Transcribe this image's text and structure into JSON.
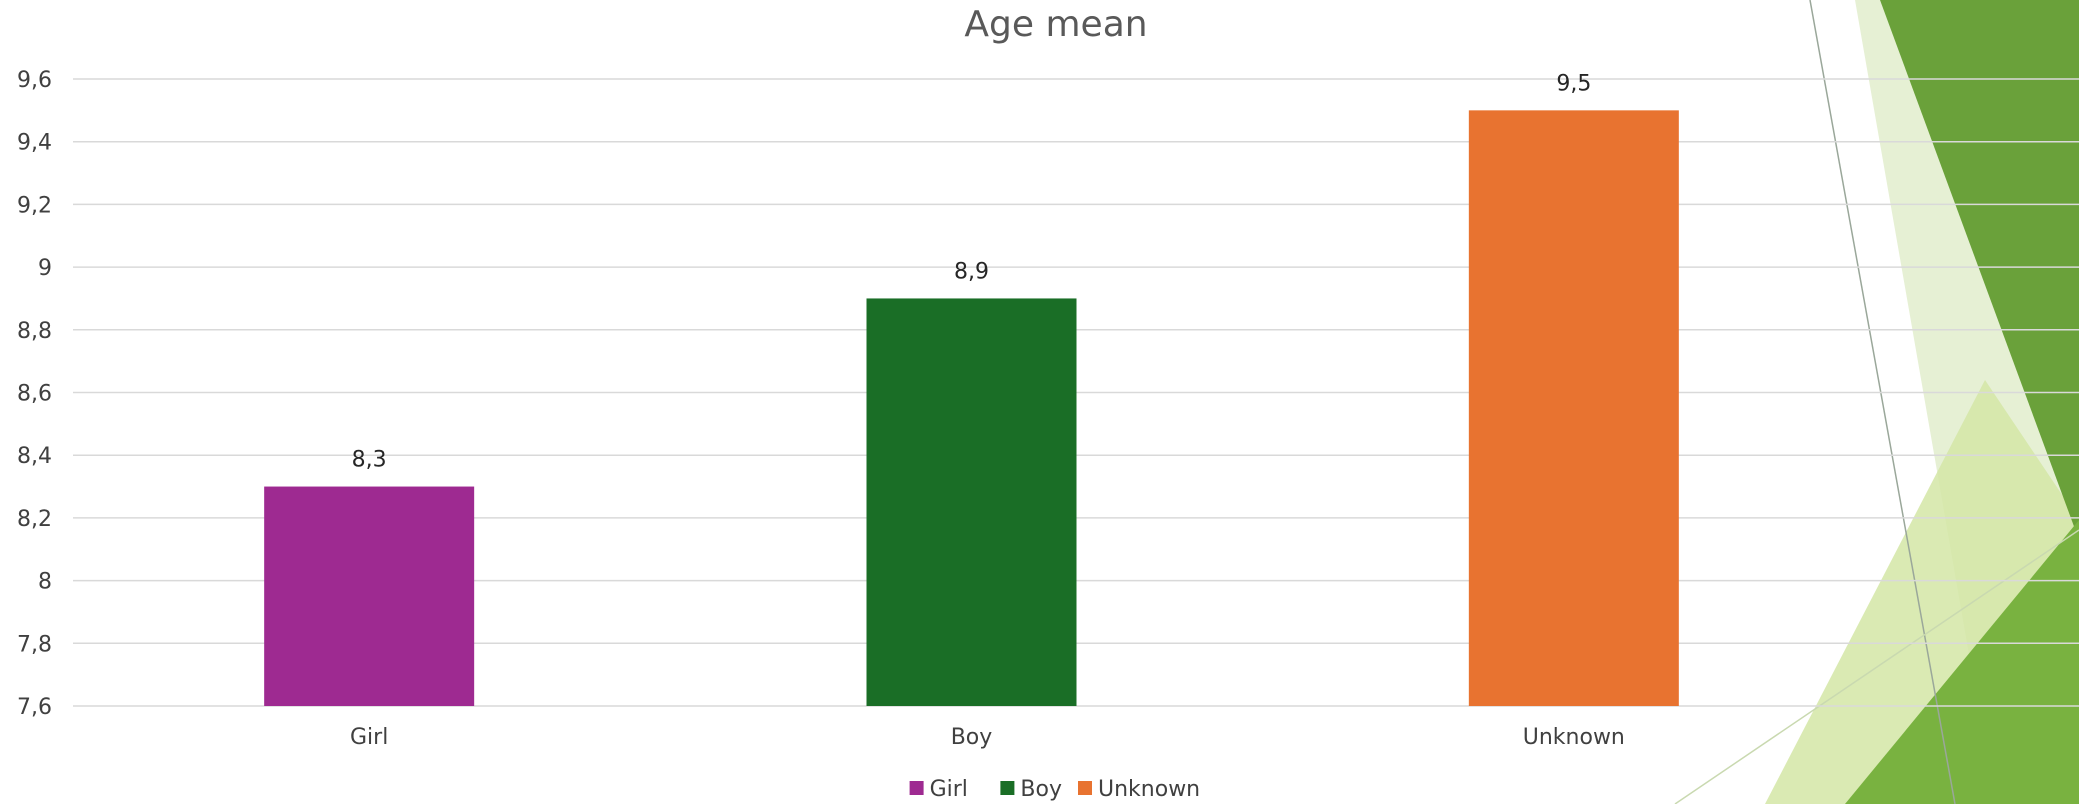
{
  "chart_data": {
    "type": "bar",
    "title": "Age mean",
    "categories": [
      "Girl",
      "Boy",
      "Unknown"
    ],
    "values": [
      8.3,
      8.9,
      9.5
    ],
    "data_labels": [
      "8,3",
      "8,9",
      "9,5"
    ],
    "colors": [
      "#9e2a91",
      "#1a6e26",
      "#e87330"
    ],
    "ylim": [
      7.6,
      9.6
    ],
    "yticks": [
      7.6,
      7.8,
      8,
      8.2,
      8.4,
      8.6,
      8.8,
      9,
      9.2,
      9.4,
      9.6
    ],
    "ytick_labels": [
      "7,6",
      "7,8",
      "8",
      "8,2",
      "8,4",
      "8,6",
      "8,8",
      "9",
      "9,2",
      "9,4",
      "9,6"
    ],
    "grid": true,
    "legend": {
      "placement": "bottom",
      "entries": [
        "Girl",
        "Boy",
        "Unknown"
      ]
    }
  },
  "theme": {
    "grid_color": "#d9d9d9",
    "decor_greens": [
      "#5a8f2e",
      "#7bb341",
      "#c5df8d",
      "#e2efcc"
    ]
  }
}
